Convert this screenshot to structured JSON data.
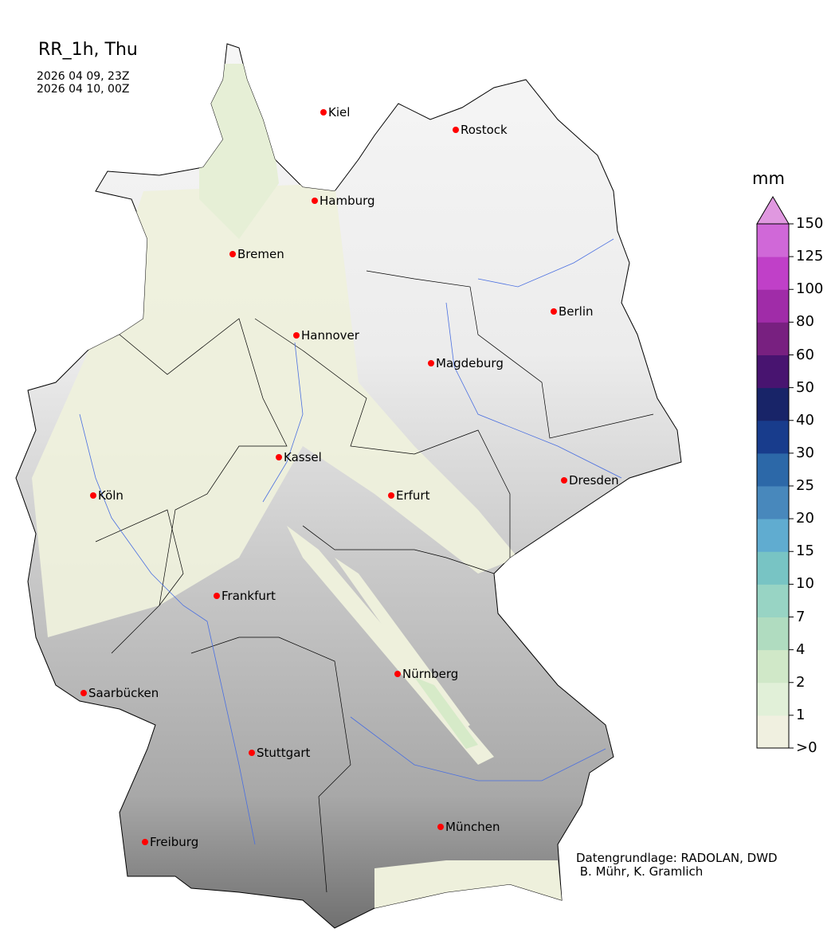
{
  "title": "RR_1h, Thu",
  "period": {
    "start": "2026 04 09, 23Z",
    "end": "2026 04 10, 00Z"
  },
  "cities": [
    "Kiel",
    "Rostock",
    "Hamburg",
    "Bremen",
    "Berlin",
    "Hannover",
    "Magdeburg",
    "Kassel",
    "Dresden",
    "Köln",
    "Erfurt",
    "Frankfurt",
    "Nürnberg",
    "Saarbücken",
    "Stuttgart",
    "München",
    "Freiburg"
  ],
  "colorbar": {
    "unit": "mm",
    "ticks": [
      ">0",
      "1",
      "2",
      "4",
      "7",
      "10",
      "15",
      "20",
      "25",
      "30",
      "40",
      "50",
      "60",
      "80",
      "100",
      "125",
      "150"
    ],
    "colors": [
      "#f0f0e0",
      "#e1f0d8",
      "#d0e8c8",
      "#b0dcc0",
      "#98d4c4",
      "#78c4c4",
      "#60acd0",
      "#4888bc",
      "#2c68a8",
      "#183c8c",
      "#182468",
      "#481470",
      "#782080",
      "#a02ca8",
      "#c040c8",
      "#d068d8"
    ],
    "extend_color": "#e098e0"
  },
  "credit": {
    "line1": "Datengrundlage: RADOLAN, DWD",
    "line2": " B. Mühr, K. Gramlich"
  }
}
